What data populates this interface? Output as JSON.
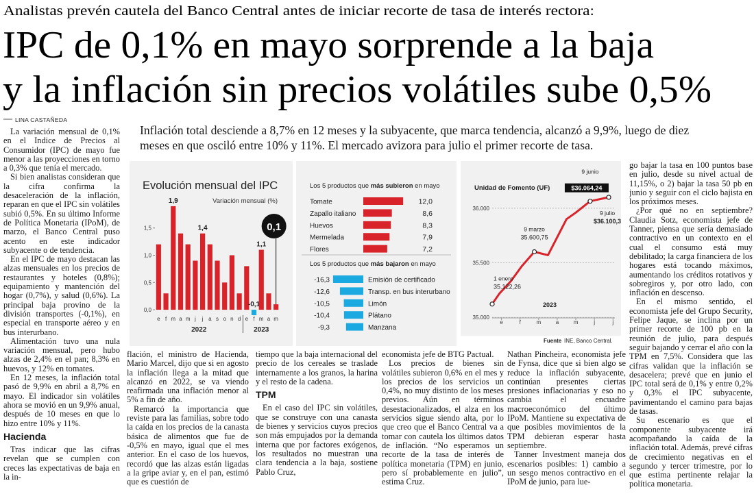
{
  "kicker": "Analistas prevén cautela del Banco Central antes de iniciar recorte de tasa de interés rectora:",
  "headline": [
    "IPC de 0,1% en mayo sorprende a la baja",
    "y la inflación sin precios volátiles sube 0,5%"
  ],
  "byline": "LINA CASTAÑEDA",
  "deck": "Inflación total desciende a 8,7% en 12 meses y la subyacente, que marca tendencia, alcanzó a 9,9%, luego de diez meses en que osciló entre 10% y 11%. El mercado avizora para julio el primer recorte de tasa.",
  "columns": [
    [
      {
        "p": "La variación mensual de 0,1% en el Indice de Precios al Consumidor (IPC) de mayo fue menor a las proyecciones en torno a 0,3% que tenía el mercado."
      },
      {
        "p": "Si bien analistas consideran que la cifra confirma la desaceleración de la inflación, reparan en que el IPC sin volátiles subió 0,5%. En su último Informe de Política Monetaria (IPoM), de marzo, el Banco Central puso acento en este indicador subyacente o de tendencia."
      },
      {
        "p": "En el IPC de mayo destacan las alzas mensuales en los precios de restaurantes y hoteles (0,8%); equipamiento y mantención del hogar (0,7%), y salud (0,6%). La principal baja provino de la división transportes (-0,1%), en especial en transporte aéreo y en bus interurbano."
      },
      {
        "p": "Alimentación tuvo una nula variación mensual, pero hubo alzas de 2,4% en el pan; 8,3% en huevos, y 12% en tomates."
      },
      {
        "p": "En 12 meses, la inflación total pasó de 9,9% en abril a 8,7% en mayo. El indicador sin volátiles ahora se movió en un 9,9% anual, después de 10 meses en que lo hizo entre 10% y 11%."
      },
      {
        "h": "Hacienda"
      },
      {
        "p": "Tras indicar que las cifras revelan que se cumplen con creces las expectativas de baja en la in-"
      }
    ],
    [
      {
        "p": "flación, el ministro de Hacienda, Mario Marcel, dijo que si en agosto la inflación llega a la mitad que alcanzó en 2022, se va viendo reafirmada una inflación menor al 5% a fin de año."
      },
      {
        "p": "Remarcó la importancia que reviste para las familias, sobre todo la caída en los precios de la canasta básica de alimentos que fue de -0,5% en mayo, igual que el mes anterior. En el caso de los huevos, recordó que las alzas están ligadas a la gripe aviar y, en el pan, estimó que es cuestión de"
      }
    ],
    [
      {
        "p": "tiempo que la baja internacional del precio de los cereales se traslade internamente a los granos, la harina y el resto de la cadena."
      },
      {
        "h": "TPM"
      },
      {
        "p": "En el caso del IPC sin volátiles, que se construye con una canasta de bienes y servicios cuyos precios son más empujados por la demanda interna que por factores exógenos, los resultados no muestran una clara tendencia a la baja, sostiene Pablo Cruz,"
      }
    ],
    [
      {
        "p": "economista jefe de BTG Pactual."
      },
      {
        "p": "Los precios de bienes sin volátiles subieron 0,6% en el mes y los precios de los servicios un 0,4%, no muy distinto de los meses previos. Aún en términos desestacionalizados, el alza en los servicios sigue siendo alta, por lo que creo que el Banco Central va a tomar con cautela los últimos datos de inflación. “No esperamos un recorte de la tasa de interés de política monetaria (TPM) en junio, pero sí probablemente en julio”, estima Cruz."
      }
    ],
    [
      {
        "p": "Nathan Pincheira, economista jefe de Fynsa, dice que si bien algo se reduce la inflación subyacente, continúan presentes ciertas presiones inflacionarias y eso no cambia el encuadre macroeconómico del último IPoM. Mantiene su expectativa de que posibles movimientos de la TPM debieran esperar hasta septiembre."
      },
      {
        "p": "Tanner Investment maneja dos escenarios posibles: 1) cambio a un sesgo menos contractivo en el IPoM de junio, para lue-"
      }
    ],
    [
      {
        "p": "go bajar la tasa en 100 puntos base en julio, desde su nivel actual de 11,15%, o 2) bajar la tasa 50 pb en junio y seguir con el ciclo bajista en los próximos meses."
      },
      {
        "p": "¿Por qué no en septiembre? Claudia Sotz, economista jefe de Tanner, piensa que sería demasiado contractivo en un contexto en el cual el consumo está muy debilitado; la carga financiera de los hogares está tocando máximos, aumentando los créditos rotativos y sobregiros y, por otro lado, con inflación en descenso."
      },
      {
        "p": "En el mismo sentido, el economista jefe del Grupo Security, Felipe Jaque, se inclina por un primer recorte de 100 pb en la reunión de julio, para después seguir bajando y cerrar el año con la TPM en 7,5%. Considera que las cifras validan que la inflación se desacelera; prevé que en junio el IPC total será de 0,1% y entre 0,2% y 0,3% el IPC subyacente, pavimentando el camino para bajas de tasas."
      },
      {
        "p": "Su escenario es que el componente subyacente irá acompañando la caída de la inflación total. Además, prevé cifras de crecimiento negativas en el segundo y tercer trimestre, por lo que estima pertinente relajar la política monetaria."
      }
    ]
  ],
  "source": {
    "label": "Fuente",
    "text": "INE, Banco Central."
  },
  "chart_data": [
    {
      "type": "bar",
      "title": "Evolución mensual del IPC",
      "subtitle": "Variación mensual (%)",
      "categories": [
        "e",
        "f",
        "m",
        "a",
        "m",
        "j",
        "j",
        "a",
        "s",
        "o",
        "n",
        "d",
        "e",
        "f",
        "m",
        "a",
        "m"
      ],
      "values": [
        1.2,
        0.3,
        1.9,
        1.4,
        1.2,
        0.9,
        1.4,
        1.2,
        0.9,
        0.5,
        1.0,
        0.3,
        0.8,
        -0.1,
        1.1,
        0.3,
        0.1
      ],
      "value_labels": [
        null,
        null,
        "1,9",
        null,
        null,
        null,
        "1,4",
        null,
        null,
        null,
        null,
        null,
        null,
        "-0,1",
        "1,1",
        null,
        "0,1"
      ],
      "colors": [
        "#d8232a",
        "#d8232a",
        "#d8232a",
        "#d8232a",
        "#d8232a",
        "#d8232a",
        "#d8232a",
        "#d8232a",
        "#d8232a",
        "#d8232a",
        "#d8232a",
        "#d8232a",
        "#d8232a",
        "#1ba9e1",
        "#d8232a",
        "#d8232a",
        "#d8232a"
      ],
      "ylim": [
        -0.2,
        2.1
      ],
      "yticks": [
        {
          "value": 0,
          "label": "0,0"
        },
        {
          "value": 0.5,
          "label": "0,5"
        },
        {
          "value": 1,
          "label": "1,0"
        },
        {
          "value": 1.5,
          "label": "1,5"
        }
      ],
      "year_labels": [
        "2022",
        "2023"
      ]
    },
    {
      "type": "hbar",
      "title": [
        "Los 5 productos que ",
        "más subieron",
        " en mayo"
      ],
      "categories": [
        "Tomate",
        "Zapallo italiano",
        "Huevos",
        "Mermelada",
        "Flores"
      ],
      "values": [
        12.0,
        8.6,
        8.3,
        7.9,
        7.2
      ],
      "value_labels": [
        "12,0",
        "8,6",
        "8,3",
        "7,9",
        "7,2"
      ],
      "color": "#d8232a",
      "xlim": [
        0,
        13
      ]
    },
    {
      "type": "hbar",
      "title": [
        "Los 5 productos que ",
        "más bajaron",
        " en mayo"
      ],
      "categories": [
        "Emisión de certificado",
        "Transp. en bus interurbano",
        "Limón",
        "Plátano",
        "Manzana"
      ],
      "values": [
        -16.3,
        -12.6,
        -10.5,
        -10.4,
        -9.3
      ],
      "value_labels": [
        "-16,3",
        "-12,6",
        "-10,5",
        "-10,4",
        "-9,3"
      ],
      "color": "#1ba9e1",
      "xlim": [
        -17,
        0
      ]
    },
    {
      "type": "line",
      "title": "Unidad de Fomento (UF)",
      "x": [
        1.0,
        1.4,
        2.0,
        2.6,
        3.27,
        4.0,
        5.0,
        5.5,
        6.27,
        7.27
      ],
      "values": [
        35122.26,
        35220,
        35330,
        35470,
        35600.75,
        35570,
        35900,
        35960,
        36064.24,
        36100.3
      ],
      "point_labels": [
        "1 enero",
        null,
        null,
        null,
        "9 marzo",
        null,
        null,
        null,
        "9 junio",
        "9 julio"
      ],
      "value_labels": [
        "35.122,26",
        null,
        null,
        null,
        "35.600,75",
        null,
        null,
        null,
        "$36.064,24",
        "$36.100,3"
      ],
      "xlim": [
        1,
        7.6
      ],
      "xticks": [
        {
          "value": 1.5,
          "label": "e"
        },
        {
          "value": 2.5,
          "label": "f"
        },
        {
          "value": 3.5,
          "label": "m"
        },
        {
          "value": 4.5,
          "label": "a"
        },
        {
          "value": 5.5,
          "label": "m"
        },
        {
          "value": 6.5,
          "label": "j"
        },
        {
          "value": 7.5,
          "label": "j"
        }
      ],
      "ylim": [
        34970,
        36150
      ],
      "yticks": [
        {
          "value": 35000,
          "label": "35.000"
        },
        {
          "value": 35500,
          "label": "35.500"
        },
        {
          "value": 36000,
          "label": "36.000"
        }
      ],
      "year_label": "2023",
      "color": "#d8232a",
      "grid": true
    }
  ]
}
